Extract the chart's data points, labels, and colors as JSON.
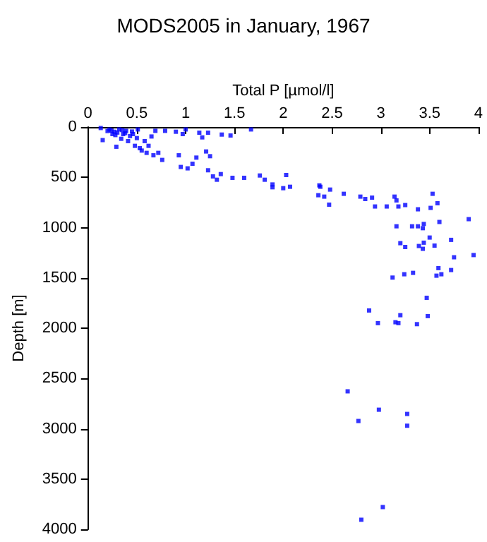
{
  "chart_data": {
    "type": "scatter",
    "title": "MODS2005 in January, 1967",
    "xlabel": "Total P [µmol/l]",
    "ylabel": "Depth [m]",
    "xlim": [
      0,
      4
    ],
    "xticks": [
      0,
      0.5,
      1,
      1.5,
      2,
      2.5,
      3,
      3.5,
      4
    ],
    "ylim": [
      4000,
      0
    ],
    "yticks": [
      0,
      500,
      1000,
      1500,
      2000,
      2500,
      3000,
      3500,
      4000
    ],
    "grid": false,
    "marker": "square",
    "series": [
      {
        "color": "#0000ff",
        "x": [
          0.13,
          0.15,
          0.22,
          0.25,
          0.27,
          0.29,
          0.32,
          0.34,
          0.36,
          0.39,
          0.41,
          0.46,
          0.48,
          0.51,
          0.53,
          0.55,
          0.58,
          0.6,
          0.62,
          0.65,
          0.67,
          0.69,
          0.72,
          0.76,
          0.79,
          0.93,
          0.9,
          0.97,
          1.0,
          0.95,
          1.02,
          1.07,
          1.11,
          1.14,
          1.17,
          1.23,
          1.21,
          1.25,
          1.23,
          1.28,
          1.32,
          1.36,
          1.37,
          1.46,
          1.48,
          1.6,
          1.67,
          1.76,
          1.81,
          1.89,
          1.89,
          2.0,
          2.03,
          2.07,
          2.37,
          2.38,
          2.36,
          2.42,
          2.48,
          2.47,
          2.62,
          2.79,
          2.84,
          2.91,
          2.94,
          3.06,
          3.14,
          3.16,
          3.18,
          3.25,
          3.38,
          3.51,
          3.53,
          3.58,
          3.16,
          3.32,
          3.38,
          3.44,
          3.43,
          3.6,
          3.9,
          3.5,
          3.2,
          3.25,
          3.39,
          3.44,
          3.43,
          3.55,
          3.72,
          3.95,
          3.75,
          3.12,
          3.24,
          3.33,
          3.59,
          3.57,
          3.62,
          3.72,
          3.47,
          2.88,
          3.2,
          3.48,
          2.97,
          3.15,
          3.18,
          3.37,
          2.66,
          2.98,
          3.27,
          2.77,
          3.27,
          3.02,
          2.8,
          0.2,
          0.3,
          0.35,
          0.43,
          0.28,
          0.38,
          0.45,
          0.5,
          0.24
        ],
        "values": [
          10,
          130,
          25,
          70,
          47,
          196,
          24,
          117,
          70,
          38,
          140,
          70,
          187,
          24,
          210,
          234,
          140,
          257,
          187,
          94,
          281,
          38,
          257,
          327,
          38,
          281,
          47,
          70,
          24,
          397,
          411,
          365,
          304,
          56,
          103,
          56,
          243,
          290,
          430,
          491,
          524,
          468,
          75,
          84,
          505,
          505,
          24,
          482,
          524,
          571,
          599,
          608,
          477,
          594,
          580,
          594,
          678,
          692,
          622,
          772,
          664,
          692,
          716,
          702,
          790,
          790,
          692,
          730,
          790,
          776,
          818,
          804,
          664,
          758,
          987,
          987,
          987,
          964,
          1006,
          944,
          916,
          1099,
          1155,
          1193,
          1183,
          1150,
          1211,
          1179,
          1122,
          1273,
          1295,
          1497,
          1464,
          1450,
          1403,
          1478,
          1464,
          1422,
          1698,
          1824,
          1871,
          1880,
          1950,
          1941,
          1950,
          1960,
          2628,
          2811,
          2853,
          2923,
          2970,
          3779,
          3905,
          40,
          55,
          30,
          90,
          80,
          60,
          45,
          110,
          35
        ]
      }
    ]
  }
}
